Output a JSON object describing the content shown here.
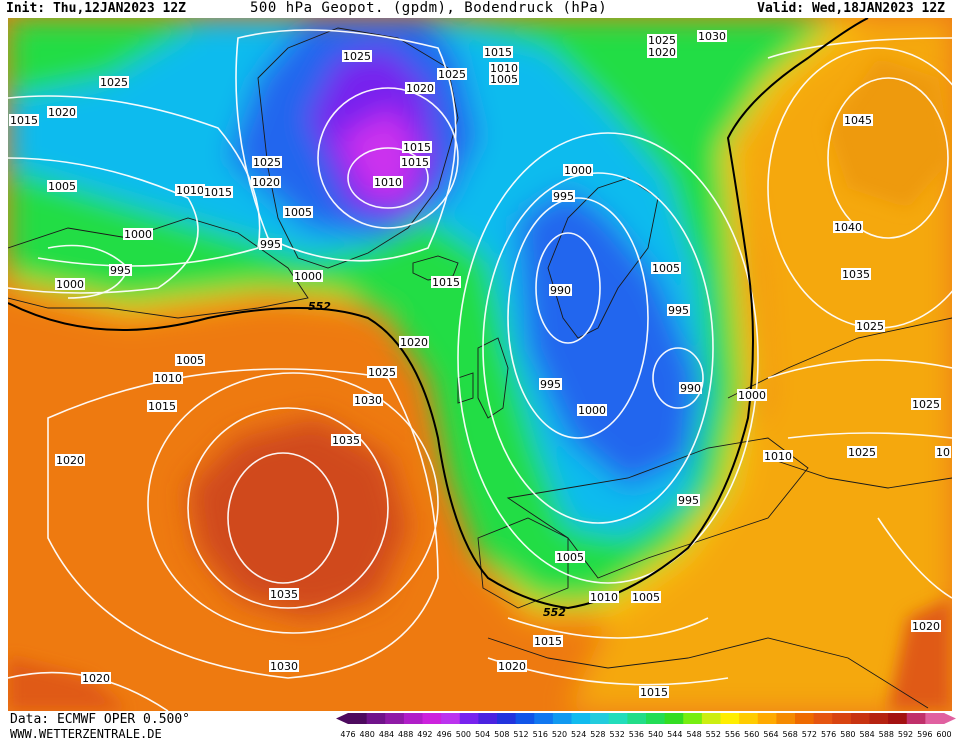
{
  "header": {
    "init": "Init: Thu,12JAN2023 12Z",
    "title": "500 hPa Geopot. (gpdm), Bodendruck (hPa)",
    "valid": "Valid: Wed,18JAN2023 12Z"
  },
  "footer": {
    "data_source": "Data: ECMWF OPER 0.500°",
    "website": "WWW.WETTERZENTRALE.DE"
  },
  "colorbar": {
    "ticks": [
      "476",
      "480",
      "484",
      "488",
      "492",
      "496",
      "500",
      "504",
      "508",
      "512",
      "516",
      "520",
      "524",
      "528",
      "532",
      "536",
      "540",
      "544",
      "548",
      "552",
      "556",
      "560",
      "564",
      "568",
      "572",
      "576",
      "580",
      "584",
      "588",
      "592",
      "596",
      "600"
    ],
    "colors": [
      "#4d0a5e",
      "#70138a",
      "#8f1aa6",
      "#b01ec8",
      "#cc22dd",
      "#bb33ee",
      "#7722ee",
      "#4a22e0",
      "#2233dd",
      "#1155e8",
      "#1177f0",
      "#1199f0",
      "#11bbee",
      "#22ccdd",
      "#22ddbb",
      "#22dd88",
      "#22dd55",
      "#33dd22",
      "#77ee11",
      "#ccee11",
      "#ffee00",
      "#ffcc00",
      "#ffaa00",
      "#f58a00",
      "#ee6a00",
      "#e55511",
      "#d84411",
      "#c83311",
      "#b52211",
      "#a31111",
      "#c0306a",
      "#e060a0"
    ]
  },
  "map": {
    "colors": {
      "warm_orange": "#ee7a10",
      "ridge_red": "#d04a1a",
      "yellow": "#ffcc00",
      "light_orange": "#f5a810",
      "green": "#22dd44",
      "cyan": "#11bbee",
      "blue": "#2266ee",
      "purple": "#9922ee",
      "magenta": "#cc33ee"
    },
    "contour_552_label": "552",
    "isobar_labels": [
      {
        "text": "1025",
        "x": 1,
        "y": 1
      },
      {
        "text": "1020",
        "x": 1,
        "y": 1
      },
      {
        "text": "1015",
        "x": 1,
        "y": 1
      },
      {
        "text": "1020",
        "x": 1,
        "y": 1
      },
      {
        "text": "1025",
        "x": 1,
        "y": 1
      },
      {
        "text": "1030",
        "x": 1,
        "y": 1
      }
    ]
  }
}
